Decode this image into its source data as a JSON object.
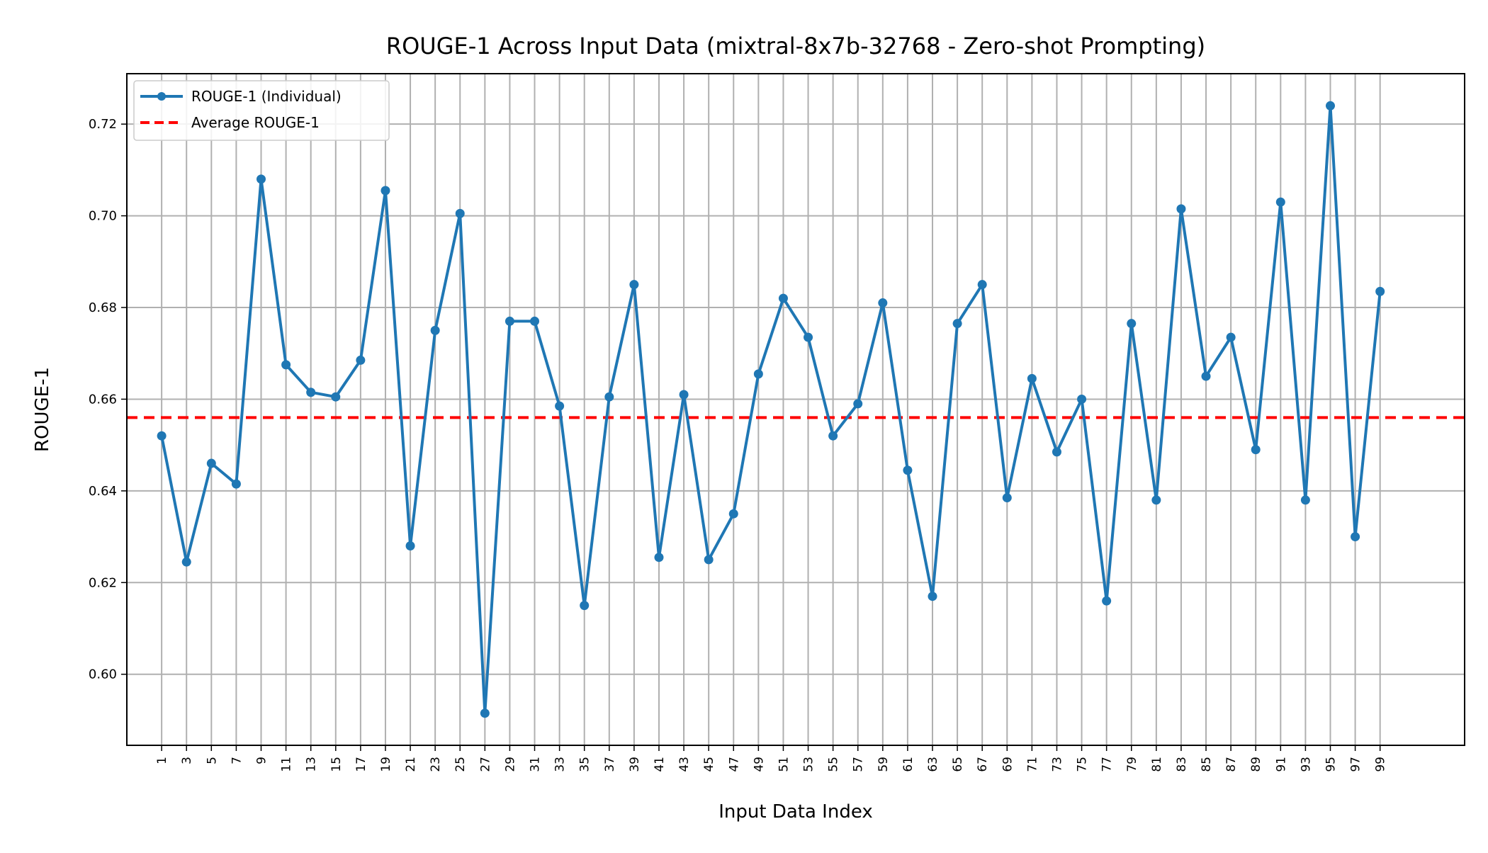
{
  "chart_data": {
    "type": "line",
    "title": "ROUGE-1 Across Input Data (mixtral-8x7b-32768 - Zero-shot Prompting)",
    "xlabel": "Input Data Index",
    "ylabel": "ROUGE-1",
    "xlim": [
      -1.4,
      52.4
    ],
    "ylim": [
      0.5845,
      0.731
    ],
    "grid": true,
    "legend_position": "top-left",
    "x_ticks": [
      "1",
      "3",
      "5",
      "7",
      "9",
      "11",
      "13",
      "15",
      "17",
      "19",
      "21",
      "23",
      "25",
      "27",
      "29",
      "31",
      "33",
      "35",
      "37",
      "39",
      "41",
      "43",
      "45",
      "47",
      "49",
      "51",
      "53",
      "55",
      "57",
      "59",
      "61",
      "63",
      "65",
      "67",
      "69",
      "71",
      "73",
      "75",
      "77",
      "79",
      "81",
      "83",
      "85",
      "87",
      "89",
      "91",
      "93",
      "95",
      "97",
      "99"
    ],
    "y_ticks": [
      "0.60",
      "0.62",
      "0.64",
      "0.66",
      "0.68",
      "0.70",
      "0.72"
    ],
    "y_tick_values": [
      0.6,
      0.62,
      0.64,
      0.66,
      0.68,
      0.7,
      0.72
    ],
    "series": [
      {
        "name": "ROUGE-1 (Individual)",
        "color": "#1f77b4",
        "marker": "circle",
        "x": [
          "1",
          "3",
          "5",
          "7",
          "9",
          "11",
          "13",
          "15",
          "17",
          "19",
          "21",
          "23",
          "25",
          "27",
          "29",
          "31",
          "33",
          "35",
          "37",
          "39",
          "41",
          "43",
          "45",
          "47",
          "49",
          "51",
          "53",
          "55",
          "57",
          "59",
          "61",
          "63",
          "65",
          "67",
          "69",
          "71",
          "73",
          "75",
          "77",
          "79",
          "81",
          "83",
          "85",
          "87",
          "89",
          "91",
          "93",
          "95",
          "97",
          "99"
        ],
        "values": [
          0.652,
          0.6245,
          0.646,
          0.6415,
          0.708,
          0.6675,
          0.6615,
          0.6605,
          0.6685,
          0.7055,
          0.628,
          0.675,
          0.7005,
          0.5915,
          0.677,
          0.677,
          0.6585,
          0.615,
          0.6605,
          0.685,
          0.6255,
          0.661,
          0.625,
          0.635,
          0.6655,
          0.682,
          0.6735,
          0.652,
          0.659,
          0.681,
          0.6445,
          0.617,
          0.6765,
          0.685,
          0.6385,
          0.6645,
          0.6485,
          0.66,
          0.616,
          0.6765,
          0.638,
          0.7015,
          0.665,
          0.6735,
          0.649,
          0.703,
          0.638,
          0.724,
          0.63,
          0.6835
        ]
      },
      {
        "name": "Average ROUGE-1",
        "color": "#ff0000",
        "style": "dashed",
        "value": 0.656
      }
    ]
  }
}
